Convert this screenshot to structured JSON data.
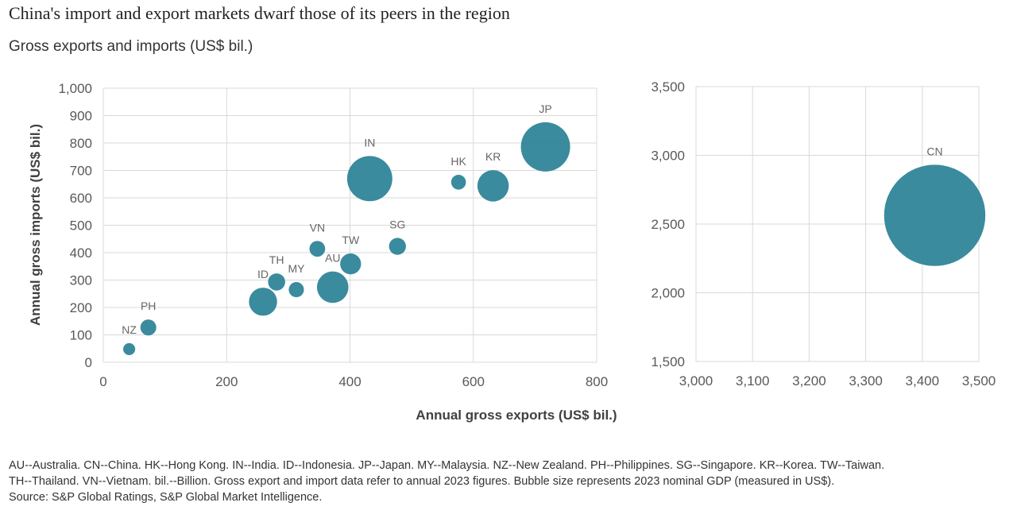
{
  "title": "China's import and export markets dwarf those of its peers in the region",
  "subtitle": "Gross exports and imports (US$ bil.)",
  "notes": {
    "line1": "AU--Australia. CN--China. HK--Hong Kong. IN--India. ID--Indonesia. JP--Japan. MY--Malaysia. NZ--New Zealand. PH--Philippines. SG--Singapore. KR--Korea. TW--Taiwan.",
    "line2": "TH--Thailand. VN--Vietnam. bil.--Billion. Gross export and import data refer to annual 2023 figures. Bubble size represents 2023 nominal GDP (measured in US$).",
    "source": "Source: S&P Global Ratings, S&P Global Market Intelligence."
  },
  "chart_data": [
    {
      "type": "scatter",
      "subtype": "bubble",
      "xlabel": "Annual gross exports (US$ bil.)",
      "ylabel": "Annual gross imports (US$ bil.)",
      "xlim": [
        0,
        800
      ],
      "ylim": [
        0,
        1000
      ],
      "xticks": [
        "0",
        "200",
        "400",
        "600",
        "800"
      ],
      "yticks": [
        "0",
        "100",
        "200",
        "300",
        "400",
        "500",
        "600",
        "700",
        "800",
        "900",
        "1,000"
      ],
      "grid": true,
      "color": "#2b8296",
      "bubble_size": "2023 nominal GDP (US$)",
      "points": [
        {
          "label": "NZ",
          "x": 42,
          "y": 48,
          "gdp": 250
        },
        {
          "label": "PH",
          "x": 73,
          "y": 127,
          "gdp": 440
        },
        {
          "label": "ID",
          "x": 259,
          "y": 221,
          "gdp": 1370
        },
        {
          "label": "TH",
          "x": 281,
          "y": 293,
          "gdp": 510
        },
        {
          "label": "MY",
          "x": 313,
          "y": 265,
          "gdp": 400
        },
        {
          "label": "VN",
          "x": 347,
          "y": 414,
          "gdp": 430
        },
        {
          "label": "AU",
          "x": 372,
          "y": 274,
          "gdp": 1720
        },
        {
          "label": "TW",
          "x": 401,
          "y": 359,
          "gdp": 760
        },
        {
          "label": "IN",
          "x": 432,
          "y": 670,
          "gdp": 3550
        },
        {
          "label": "SG",
          "x": 477,
          "y": 423,
          "gdp": 500
        },
        {
          "label": "HK",
          "x": 576,
          "y": 657,
          "gdp": 380
        },
        {
          "label": "KR",
          "x": 632,
          "y": 644,
          "gdp": 1710
        },
        {
          "label": "JP",
          "x": 717,
          "y": 786,
          "gdp": 4210
        }
      ]
    },
    {
      "type": "scatter",
      "subtype": "bubble",
      "xlim": [
        3000,
        3500
      ],
      "ylim": [
        1500,
        3500
      ],
      "xticks": [
        "3,000",
        "3,100",
        "3,200",
        "3,300",
        "3,400",
        "3,500"
      ],
      "yticks": [
        "1,500",
        "2,000",
        "2,500",
        "3,000",
        "3,500"
      ],
      "grid": true,
      "color": "#2b8296",
      "points": [
        {
          "label": "CN",
          "x": 3422,
          "y": 2563,
          "gdp": 17790
        }
      ]
    }
  ]
}
